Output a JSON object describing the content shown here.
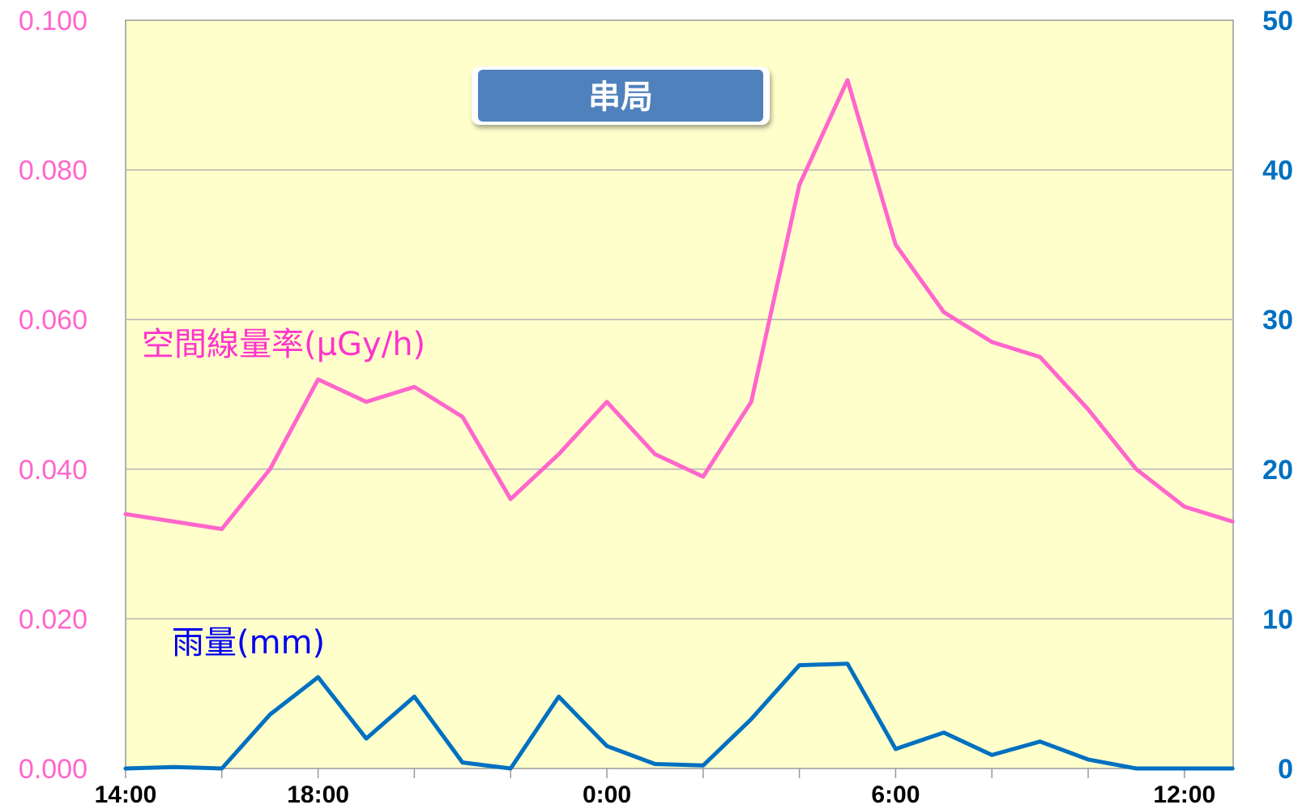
{
  "chart_data": {
    "type": "line",
    "title": "串局",
    "x": [
      "14:00",
      "15:00",
      "16:00",
      "17:00",
      "18:00",
      "19:00",
      "20:00",
      "21:00",
      "22:00",
      "23:00",
      "0:00",
      "1:00",
      "2:00",
      "3:00",
      "4:00",
      "5:00",
      "6:00",
      "7:00",
      "8:00",
      "9:00",
      "10:00",
      "11:00",
      "12:00",
      "13:00"
    ],
    "x_tick_labels": [
      "14:00",
      "18:00",
      "0:00",
      "6:00",
      "12:00"
    ],
    "left_axis": {
      "ylim": [
        0,
        0.1
      ],
      "ticks": [
        "0.000",
        "0.020",
        "0.040",
        "0.060",
        "0.080",
        "0.100"
      ],
      "color": "#ff66cc"
    },
    "right_axis": {
      "ylim": [
        0,
        50
      ],
      "ticks": [
        "0",
        "10",
        "20",
        "30",
        "40",
        "50"
      ],
      "color": "#0070c0"
    },
    "grid": true,
    "plot_background": "#ffffcc",
    "series": [
      {
        "name": "空間線量率(μGy/h)",
        "axis": "left",
        "color": "#ff66cc",
        "values": [
          0.034,
          0.033,
          0.032,
          0.04,
          0.052,
          0.049,
          0.051,
          0.047,
          0.036,
          0.042,
          0.049,
          0.042,
          0.039,
          0.049,
          0.078,
          0.092,
          0.07,
          0.061,
          0.057,
          0.055,
          0.048,
          0.04,
          0.035,
          0.033
        ]
      },
      {
        "name": "雨量(mm)",
        "axis": "right",
        "color": "#0070c0",
        "values": [
          0,
          0.1,
          0,
          3.6,
          6.1,
          2.0,
          4.8,
          0.4,
          0,
          4.8,
          1.5,
          0.3,
          0.2,
          3.3,
          6.9,
          7.0,
          1.3,
          2.4,
          0.9,
          1.8,
          0.6,
          0,
          0,
          0
        ]
      }
    ]
  },
  "colors": {
    "pink": "#ff66cc",
    "blue": "#0070c0",
    "label_blue": "#0000ee",
    "title_bg": "#4f81bd"
  }
}
